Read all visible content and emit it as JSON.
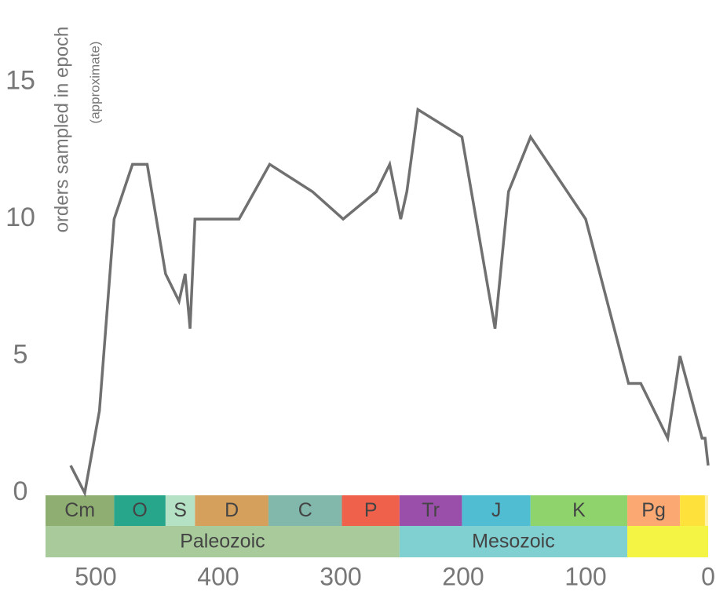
{
  "chart_data": {
    "type": "line",
    "y_label": "orders sampled in epoch",
    "y_label_note": "(approximate)",
    "x": [
      520.5,
      509,
      497,
      485,
      470,
      458,
      443,
      432,
      427,
      423,
      419,
      383,
      358,
      323,
      298,
      271,
      260,
      251,
      246,
      237,
      201,
      174,
      163,
      145,
      100,
      65,
      55,
      33,
      23,
      5,
      2.5,
      0
    ],
    "values": [
      1,
      0,
      3,
      10,
      12,
      12,
      8,
      7,
      8,
      6,
      10,
      10,
      12,
      11,
      10,
      11,
      12,
      10,
      11,
      14,
      13,
      6,
      11,
      13,
      10,
      4,
      4,
      2,
      5,
      2,
      2,
      1
    ],
    "color": "#707070",
    "xlim": [
      541,
      0
    ],
    "ylim": [
      0,
      18
    ],
    "xticks": [
      500,
      400,
      300,
      200,
      100,
      0
    ],
    "yticks": [
      0,
      5,
      10,
      15
    ],
    "periods": [
      {
        "name": "Cm",
        "start": 541,
        "end": 485,
        "color": "#8fae72"
      },
      {
        "name": "O",
        "start": 485,
        "end": 443,
        "color": "#27a68c"
      },
      {
        "name": "S",
        "start": 443,
        "end": 419,
        "color": "#b5e2c4"
      },
      {
        "name": "D",
        "start": 419,
        "end": 359,
        "color": "#d4a05c"
      },
      {
        "name": "C",
        "start": 359,
        "end": 299,
        "color": "#82b7ab"
      },
      {
        "name": "P",
        "start": 299,
        "end": 252,
        "color": "#f0614b"
      },
      {
        "name": "Tr",
        "start": 252,
        "end": 201,
        "color": "#9a4fab"
      },
      {
        "name": "J",
        "start": 201,
        "end": 145,
        "color": "#50bdd3"
      },
      {
        "name": "K",
        "start": 145,
        "end": 66,
        "color": "#8ed36c"
      },
      {
        "name": "Pg",
        "start": 66,
        "end": 23,
        "color": "#fca872"
      },
      {
        "name": null,
        "start": 23,
        "end": 2.6,
        "color": "#ffe13c"
      },
      {
        "name": null,
        "start": 2.6,
        "end": 0,
        "color": "#fff2a6"
      }
    ],
    "eras": [
      {
        "name": "Paleozoic",
        "start": 541,
        "end": 252,
        "color": "#a9cb9b"
      },
      {
        "name": "Mesozoic",
        "start": 252,
        "end": 66,
        "color": "#80d0d2"
      },
      {
        "name": null,
        "start": 66,
        "end": 0,
        "color": "#f4f445"
      }
    ]
  }
}
